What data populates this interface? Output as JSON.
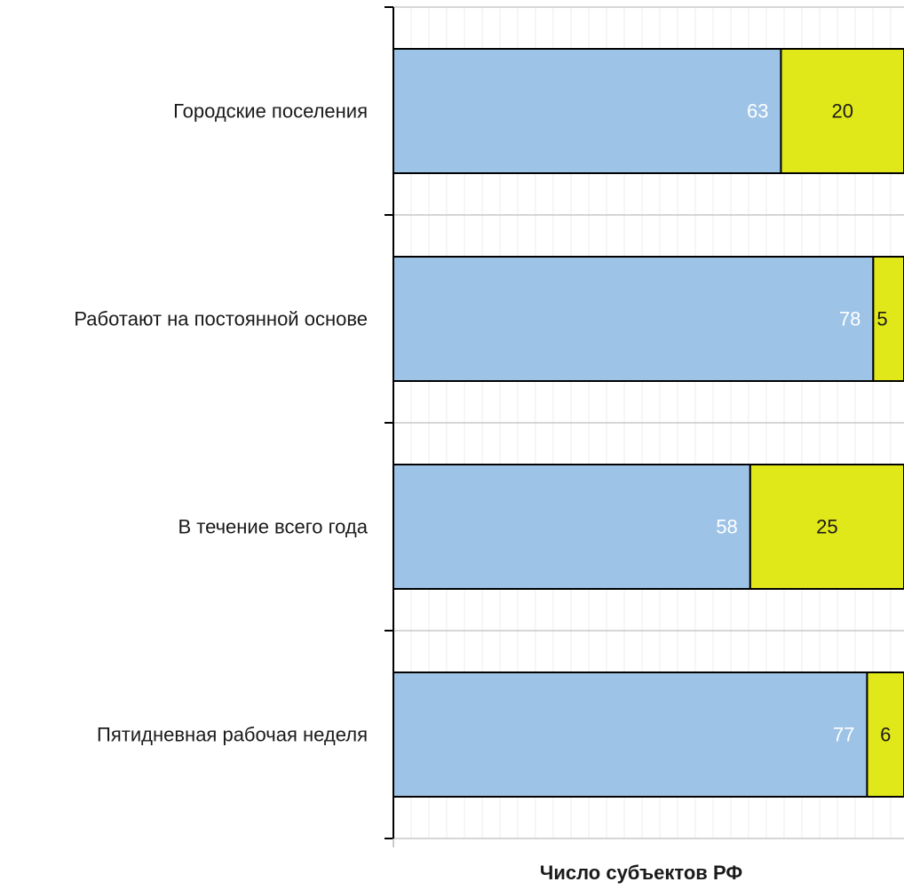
{
  "chart_data": {
    "type": "bar",
    "orientation": "horizontal",
    "stacked": true,
    "categories": [
      "Городские поселения",
      "Работают на постоянной основе",
      "В течение всего года",
      "Пятидневная рабочая неделя"
    ],
    "series": [
      {
        "values": [
          63,
          78,
          58,
          77
        ],
        "color": "#9dc3e6",
        "label_color": "#ffffff"
      },
      {
        "values": [
          20,
          5,
          25,
          6
        ],
        "color": "#e1e819",
        "label_color": "#1a1a1a"
      }
    ],
    "xlabel": "Число субъектов РФ",
    "xlim": [
      0,
      83
    ],
    "grid": true,
    "legend": "none"
  }
}
